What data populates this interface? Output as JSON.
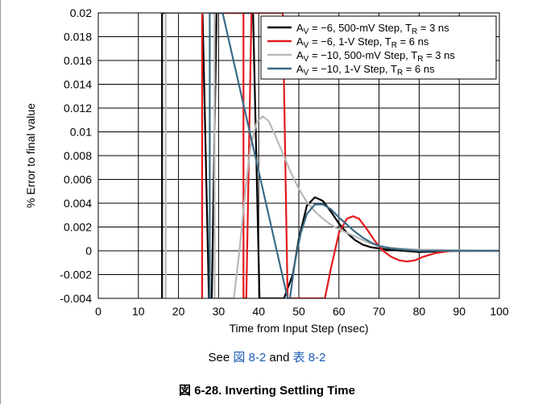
{
  "chart_data": {
    "type": "line",
    "xlabel": "Time from Input Step (nsec)",
    "ylabel": "% Error to final value",
    "xlim": [
      0,
      100
    ],
    "ylim": [
      -0.004,
      0.02
    ],
    "xticks": [
      "0",
      "10",
      "20",
      "30",
      "40",
      "50",
      "60",
      "70",
      "80",
      "90",
      "100"
    ],
    "yticks": [
      "-0.004",
      "-0.002",
      "0",
      "0.002",
      "0.004",
      "0.006",
      "0.008",
      "0.01",
      "0.012",
      "0.014",
      "0.016",
      "0.018",
      "0.02"
    ],
    "grid": true,
    "legend_position": "top-right",
    "series": [
      {
        "name_parts": {
          "a": "A",
          "v": "V",
          "text": " = −6, 500-mV Step, T",
          "r": "R",
          "end": " = 3 ns"
        },
        "color": "#000000",
        "points": [
          [
            15.9,
            -0.004
          ],
          [
            15.9,
            0.02
          ],
          [
            26,
            0.02
          ],
          [
            27.6,
            -0.004
          ],
          [
            28.3,
            -0.004
          ],
          [
            29.5,
            0.02
          ],
          [
            38.6,
            0.02
          ],
          [
            40.2,
            -0.004
          ],
          [
            46.3,
            -0.004
          ],
          [
            48.5,
            -0.002
          ],
          [
            50,
            0.001
          ],
          [
            52,
            0.0038
          ],
          [
            54,
            0.0045
          ],
          [
            56,
            0.0042
          ],
          [
            58,
            0.0033
          ],
          [
            60,
            0.0023
          ],
          [
            62,
            0.0015
          ],
          [
            64,
            0.0009
          ],
          [
            66,
            0.0005
          ],
          [
            68,
            0.0003
          ],
          [
            72,
            0.0001
          ],
          [
            76,
            0.0
          ],
          [
            80,
            -0.0001
          ],
          [
            90,
            0.0
          ],
          [
            100,
            0.0
          ]
        ]
      },
      {
        "name_parts": {
          "a": "A",
          "v": "V",
          "text": " = −6, 1-V Step, T",
          "r": "R",
          "end": " = 6 ns"
        },
        "color": "#e31a1c",
        "points": [
          [
            25.9,
            -0.004
          ],
          [
            25.9,
            0.02
          ],
          [
            36.2,
            0.02
          ],
          [
            36.2,
            -0.004
          ],
          [
            36.9,
            -0.004
          ],
          [
            38.2,
            0.02
          ],
          [
            46.0,
            0.02
          ],
          [
            47.2,
            -0.004
          ],
          [
            56.5,
            -0.004
          ],
          [
            58,
            -0.0015
          ],
          [
            60,
            0.0015
          ],
          [
            62,
            0.0027
          ],
          [
            63.5,
            0.0029
          ],
          [
            65,
            0.0027
          ],
          [
            67,
            0.0018
          ],
          [
            69,
            0.0008
          ],
          [
            71,
            0.0
          ],
          [
            73,
            -0.0005
          ],
          [
            75,
            -0.0008
          ],
          [
            77,
            -0.0009
          ],
          [
            79,
            -0.0008
          ],
          [
            81,
            -0.0005
          ],
          [
            84,
            -0.0002
          ],
          [
            88,
            0.0
          ],
          [
            100,
            0.0
          ]
        ]
      },
      {
        "name_parts": {
          "a": "A",
          "v": "V",
          "text": " = −10, 500-mV Step, T",
          "r": "R",
          "end": " = 3 ns"
        },
        "color": "#b8b8b8",
        "points": [
          [
            16.8,
            -0.004
          ],
          [
            16.8,
            0.02
          ],
          [
            29,
            0.02
          ],
          [
            29,
            -0.004
          ],
          [
            33.8,
            -0.004
          ],
          [
            35.2,
            0.0
          ],
          [
            36.8,
            0.0055
          ],
          [
            38,
            0.0088
          ],
          [
            39.5,
            0.0108
          ],
          [
            41,
            0.0113
          ],
          [
            42.5,
            0.0109
          ],
          [
            44,
            0.0098
          ],
          [
            46,
            0.0082
          ],
          [
            48,
            0.0066
          ],
          [
            50,
            0.0052
          ],
          [
            52,
            0.0041
          ],
          [
            54,
            0.0033
          ],
          [
            56,
            0.0027
          ],
          [
            58,
            0.0022
          ],
          [
            60,
            0.0018
          ],
          [
            62,
            0.0015
          ],
          [
            64,
            0.0012
          ],
          [
            66,
            0.0009
          ],
          [
            68,
            0.0006
          ],
          [
            70,
            0.0004
          ],
          [
            72,
            0.0003
          ],
          [
            75,
            0.0002
          ],
          [
            80,
            0.0001
          ],
          [
            100,
            0.0
          ]
        ]
      },
      {
        "name_parts": {
          "a": "A",
          "v": "V",
          "text": " = −10, 1-V Step, T",
          "r": "R",
          "end": " = 6 ns"
        },
        "color": "#3a6b87",
        "points": [
          [
            27.8,
            -0.004
          ],
          [
            27.8,
            0.02
          ],
          [
            31.0,
            0.02
          ],
          [
            47.2,
            -0.004
          ],
          [
            47.8,
            -0.004
          ],
          [
            49,
            -0.001
          ],
          [
            50.5,
            0.0015
          ],
          [
            52,
            0.0031
          ],
          [
            54,
            0.0039
          ],
          [
            56,
            0.0039
          ],
          [
            58,
            0.0035
          ],
          [
            60,
            0.0028
          ],
          [
            62,
            0.0022
          ],
          [
            64,
            0.0016
          ],
          [
            66,
            0.0011
          ],
          [
            68,
            0.0007
          ],
          [
            70,
            0.0004
          ],
          [
            73,
            0.0002
          ],
          [
            76,
            0.0001
          ],
          [
            80,
            0.0
          ],
          [
            100,
            0.0
          ]
        ]
      }
    ]
  },
  "footer": {
    "see_text": "See ",
    "fig_ref_cjk": "図",
    "fig_ref_num": " 8-2",
    "and_text": " and ",
    "table_ref_cjk": "表",
    "table_ref_num": " 8-2"
  },
  "caption": {
    "cjk": "図",
    "text": " 6-28. Inverting Settling Time"
  }
}
